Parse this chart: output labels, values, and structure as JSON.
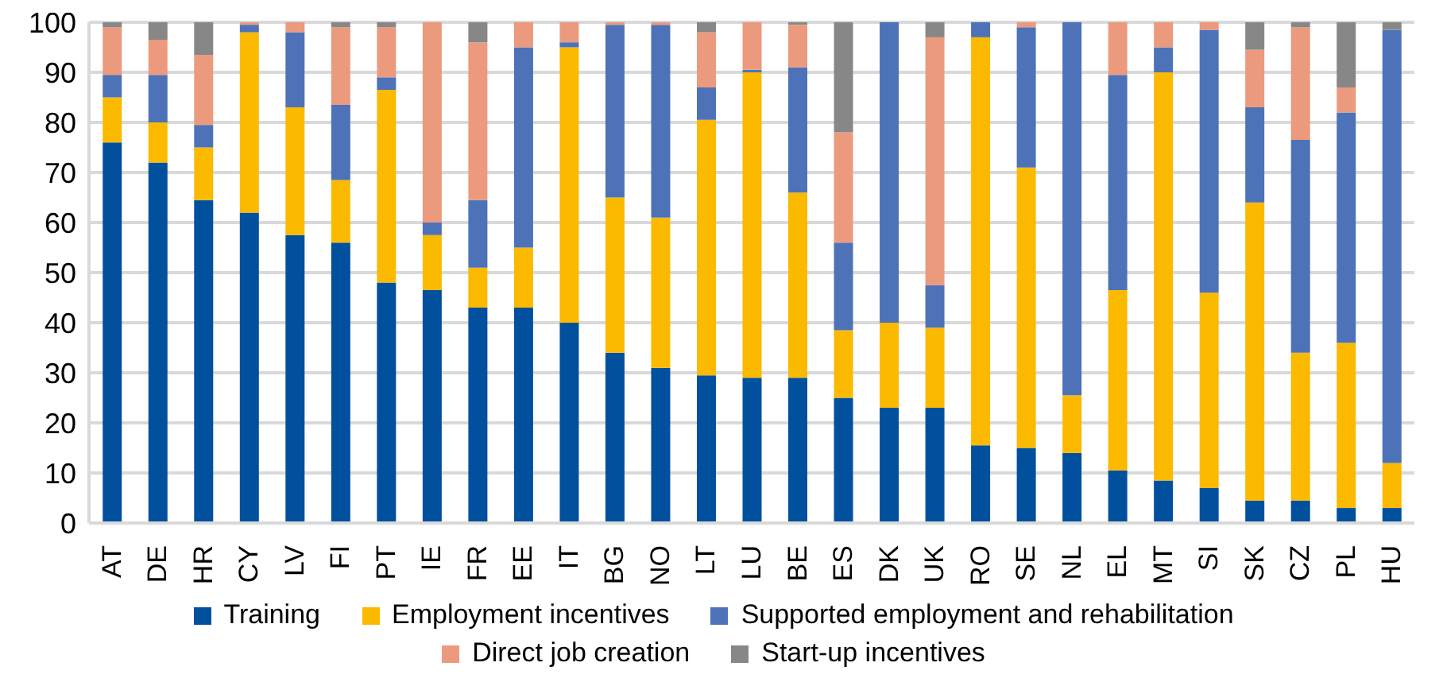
{
  "chart_data": {
    "type": "bar",
    "stacked": true,
    "categories": [
      "AT",
      "DE",
      "HR",
      "CY",
      "LV",
      "FI",
      "PT",
      "IE",
      "FR",
      "EE",
      "IT",
      "BG",
      "NO",
      "LT",
      "LU",
      "BE",
      "ES",
      "DK",
      "UK",
      "RO",
      "SE",
      "NL",
      "EL",
      "MT",
      "SI",
      "SK",
      "CZ",
      "PL",
      "HU"
    ],
    "series": [
      {
        "name": "Training",
        "color": "#00509e",
        "values": [
          76,
          72,
          64.5,
          62,
          57.5,
          56,
          48,
          46.5,
          43,
          43,
          40,
          34,
          31,
          29.5,
          29,
          29,
          25,
          23,
          23,
          15.5,
          15,
          14,
          10.5,
          8.5,
          7,
          4.5,
          4.5,
          3,
          3
        ]
      },
      {
        "name": "Employment incentives",
        "color": "#fbb900",
        "values": [
          9,
          8,
          10.5,
          36,
          25.5,
          12.5,
          38.5,
          11,
          8,
          12,
          55,
          31,
          30,
          51,
          61,
          37,
          13.5,
          17,
          16,
          81.5,
          56,
          11.5,
          36,
          81.5,
          39,
          59.5,
          29.5,
          33,
          9
        ]
      },
      {
        "name": "Supported employment and rehabilitation",
        "color": "#4d72b8",
        "values": [
          4.5,
          9.5,
          4.5,
          1.5,
          15,
          15,
          2.5,
          2.5,
          13.5,
          40,
          1,
          34.5,
          38.5,
          6.5,
          0.5,
          25,
          17.5,
          60,
          8.5,
          3,
          28,
          74.5,
          43,
          5,
          52.5,
          19,
          42.5,
          46,
          86.5
        ]
      },
      {
        "name": "Direct job creation",
        "color": "#ec9a7d",
        "values": [
          9.5,
          7,
          14,
          0.5,
          2,
          15.5,
          10,
          40,
          31.5,
          5,
          4,
          0.5,
          0.5,
          11,
          9.5,
          8.5,
          22,
          0,
          49.5,
          0,
          1,
          0,
          10.5,
          5,
          1.5,
          11.5,
          22.5,
          5,
          0
        ]
      },
      {
        "name": "Start-up incentives",
        "color": "#878787",
        "values": [
          1,
          3.5,
          6.5,
          0,
          0,
          1,
          1,
          0,
          4,
          0,
          0,
          0,
          0,
          2,
          0,
          0.5,
          22,
          0,
          3,
          0,
          0,
          0,
          0,
          0,
          0,
          5.5,
          1,
          13,
          1.5
        ]
      }
    ],
    "ylim": [
      0,
      100
    ],
    "yticks": [
      0,
      10,
      20,
      30,
      40,
      50,
      60,
      70,
      80,
      90,
      100
    ],
    "grid": "y",
    "legend": "bottom"
  }
}
